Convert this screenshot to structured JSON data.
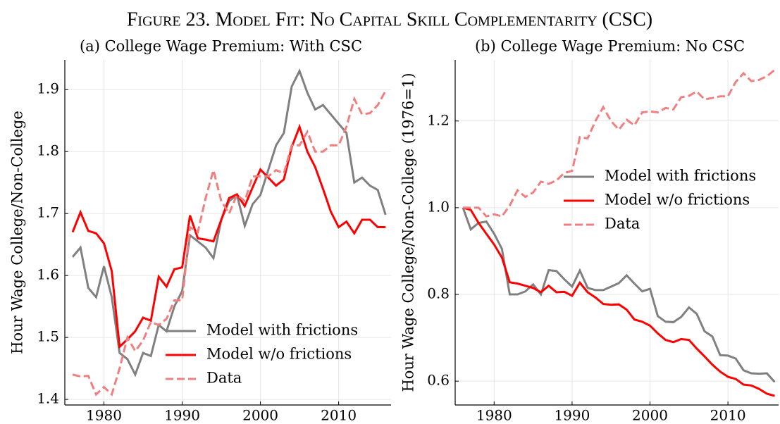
{
  "figure_title": "Figure 23. Model Fit: No Capital Skill Complementarity (CSC)",
  "chart_data": [
    {
      "type": "line",
      "title": "(a) College Wage Premium: With CSC",
      "ylabel": "Hour Wage College/Non-College",
      "x": [
        1976,
        1977,
        1978,
        1979,
        1980,
        1981,
        1982,
        1983,
        1984,
        1985,
        1986,
        1987,
        1988,
        1989,
        1990,
        1991,
        1992,
        1993,
        1994,
        1995,
        1996,
        1997,
        1998,
        1999,
        2000,
        2001,
        2002,
        2003,
        2004,
        2005,
        2006,
        2007,
        2008,
        2009,
        2010,
        2011,
        2012,
        2013,
        2014,
        2015,
        2016
      ],
      "xlim": [
        1975,
        2016.7
      ],
      "xticks": [
        1980,
        1990,
        2000,
        2010
      ],
      "ylim": [
        1.391,
        1.948
      ],
      "yticks": [
        1.4,
        1.5,
        1.6,
        1.7,
        1.8,
        1.9
      ],
      "grid": true,
      "legend": "lower right",
      "series": [
        {
          "name": "Model with frictions",
          "color": "#808080",
          "linestyle": "solid",
          "values": [
            1.63,
            1.645,
            1.58,
            1.565,
            1.615,
            1.565,
            1.475,
            1.465,
            1.44,
            1.475,
            1.47,
            1.52,
            1.51,
            1.55,
            1.575,
            1.665,
            1.655,
            1.645,
            1.628,
            1.69,
            1.72,
            1.73,
            1.68,
            1.715,
            1.73,
            1.77,
            1.81,
            1.83,
            1.905,
            1.93,
            1.895,
            1.868,
            1.875,
            1.86,
            1.845,
            1.83,
            1.75,
            1.758,
            1.745,
            1.738,
            1.698
          ]
        },
        {
          "name": "Model w/o frictions",
          "color": "#ff0000",
          "linestyle": "solid",
          "values": [
            1.67,
            1.702,
            1.672,
            1.668,
            1.652,
            1.607,
            1.485,
            1.497,
            1.51,
            1.532,
            1.527,
            1.598,
            1.582,
            1.61,
            1.613,
            1.697,
            1.66,
            1.658,
            1.655,
            1.69,
            1.725,
            1.731,
            1.712,
            1.742,
            1.771,
            1.758,
            1.745,
            1.755,
            1.807,
            1.84,
            1.8,
            1.775,
            1.74,
            1.703,
            1.678,
            1.687,
            1.668,
            1.69,
            1.69,
            1.678,
            1.678
          ]
        },
        {
          "name": "Data",
          "color": "#f08080",
          "linestyle": "dashed",
          "values": [
            1.44,
            1.437,
            1.438,
            1.408,
            1.42,
            1.408,
            1.45,
            1.5,
            1.478,
            1.495,
            1.525,
            1.52,
            1.53,
            1.56,
            1.56,
            1.678,
            1.67,
            1.725,
            1.77,
            1.72,
            1.7,
            1.73,
            1.72,
            1.76,
            1.76,
            1.76,
            1.77,
            1.765,
            1.81,
            1.81,
            1.832,
            1.8,
            1.8,
            1.81,
            1.81,
            1.84,
            1.885,
            1.86,
            1.862,
            1.875,
            1.898
          ]
        }
      ]
    },
    {
      "type": "line",
      "title": "(b) College Wage Premium: No CSC",
      "ylabel": "Hour Wage College/Non-College (1976=1)",
      "x": [
        1976,
        1977,
        1978,
        1979,
        1980,
        1981,
        1982,
        1983,
        1984,
        1985,
        1986,
        1987,
        1988,
        1989,
        1990,
        1991,
        1992,
        1993,
        1994,
        1995,
        1996,
        1997,
        1998,
        1999,
        2000,
        2001,
        2002,
        2003,
        2004,
        2005,
        2006,
        2007,
        2008,
        2009,
        2010,
        2011,
        2012,
        2013,
        2014,
        2015,
        2016
      ],
      "xlim": [
        1975,
        2016.5
      ],
      "xticks": [
        1980,
        1990,
        2000,
        2010
      ],
      "ylim": [
        0.545,
        1.341
      ],
      "yticks": [
        0.6,
        0.8,
        {
          "value": 1,
          "label": "1.0"
        },
        1.2
      ],
      "grid": true,
      "legend": "center right",
      "series": [
        {
          "name": "Model with frictions",
          "color": "#808080",
          "linestyle": "solid",
          "values": [
            1.0,
            0.95,
            0.965,
            0.968,
            0.94,
            0.905,
            0.8,
            0.8,
            0.807,
            0.823,
            0.8,
            0.856,
            0.854,
            0.835,
            0.818,
            0.855,
            0.815,
            0.81,
            0.81,
            0.818,
            0.826,
            0.844,
            0.825,
            0.807,
            0.813,
            0.75,
            0.737,
            0.736,
            0.748,
            0.77,
            0.755,
            0.715,
            0.703,
            0.66,
            0.659,
            0.652,
            0.625,
            0.618,
            0.617,
            0.618,
            0.598
          ]
        },
        {
          "name": "Model w/o frictions",
          "color": "#ff0000",
          "linestyle": "solid",
          "values": [
            1.0,
            0.995,
            0.965,
            0.94,
            0.915,
            0.885,
            0.828,
            0.825,
            0.82,
            0.815,
            0.805,
            0.82,
            0.805,
            0.806,
            0.797,
            0.827,
            0.805,
            0.793,
            0.778,
            0.776,
            0.777,
            0.765,
            0.742,
            0.737,
            0.728,
            0.71,
            0.695,
            0.69,
            0.697,
            0.695,
            0.675,
            0.657,
            0.638,
            0.622,
            0.61,
            0.605,
            0.592,
            0.59,
            0.582,
            0.571,
            0.566
          ]
        },
        {
          "name": "Data",
          "color": "#f08080",
          "linestyle": "dashed",
          "values": [
            1.0,
            1.0,
            1.0,
            0.98,
            0.985,
            0.98,
            1.005,
            1.04,
            1.025,
            1.035,
            1.06,
            1.055,
            1.063,
            1.08,
            1.085,
            1.163,
            1.16,
            1.2,
            1.232,
            1.2,
            1.18,
            1.203,
            1.19,
            1.22,
            1.222,
            1.22,
            1.23,
            1.227,
            1.255,
            1.258,
            1.268,
            1.25,
            1.253,
            1.257,
            1.257,
            1.29,
            1.31,
            1.292,
            1.295,
            1.303,
            1.318
          ]
        }
      ]
    }
  ]
}
